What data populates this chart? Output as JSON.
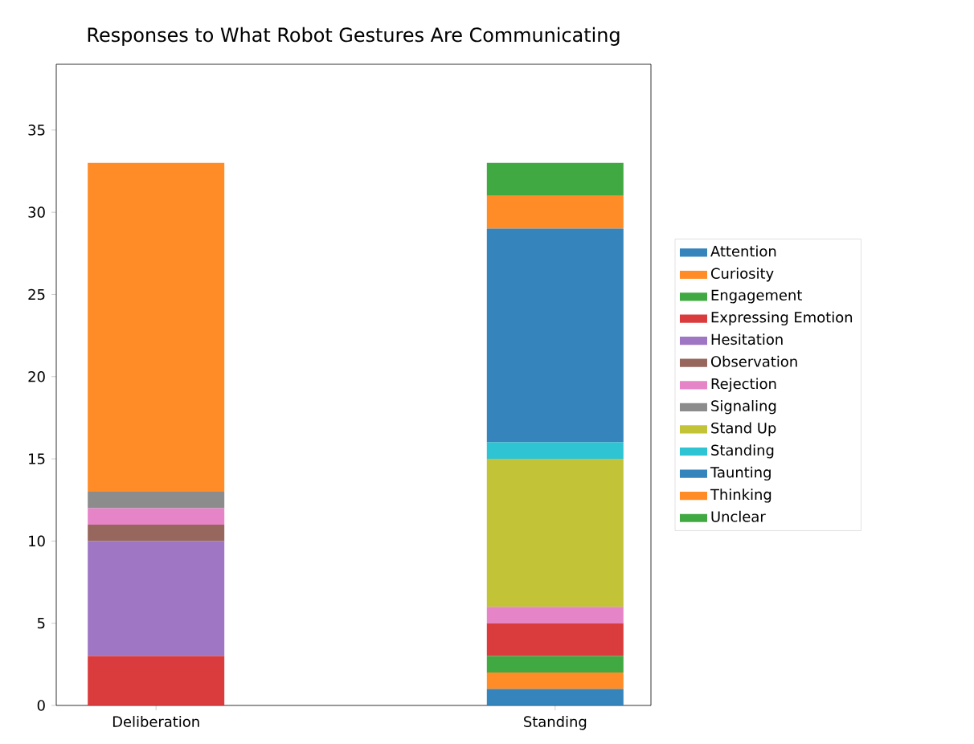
{
  "chart_data": {
    "type": "bar",
    "stacked": true,
    "title": "Responses to What Robot Gestures Are Communicating",
    "categories": [
      "Deliberation",
      "Standing"
    ],
    "series": [
      {
        "name": "Attention",
        "color": "#1f77b4",
        "values": [
          0,
          1
        ]
      },
      {
        "name": "Curiosity",
        "color": "#ff7f0e",
        "values": [
          0,
          1
        ]
      },
      {
        "name": "Engagement",
        "color": "#2ca02c",
        "values": [
          0,
          1
        ]
      },
      {
        "name": "Expressing Emotion",
        "color": "#d62728",
        "values": [
          3,
          2
        ]
      },
      {
        "name": "Hesitation",
        "color": "#9467bd",
        "values": [
          7,
          0
        ]
      },
      {
        "name": "Observation",
        "color": "#8c564b",
        "values": [
          1,
          0
        ]
      },
      {
        "name": "Rejection",
        "color": "#e377c2",
        "values": [
          1,
          1
        ]
      },
      {
        "name": "Signaling",
        "color": "#7f7f7f",
        "values": [
          1,
          0
        ]
      },
      {
        "name": "Stand Up",
        "color": "#bcbd22",
        "values": [
          0,
          9
        ]
      },
      {
        "name": "Standing",
        "color": "#17becf",
        "values": [
          0,
          1
        ]
      },
      {
        "name": "Taunting",
        "color": "#1f77b4",
        "values": [
          0,
          13
        ]
      },
      {
        "name": "Thinking",
        "color": "#ff7f0e",
        "values": [
          20,
          2
        ]
      },
      {
        "name": "Unclear",
        "color": "#2ca02c",
        "values": [
          0,
          2
        ]
      }
    ],
    "ylim": [
      0,
      39
    ],
    "yticks": [
      0,
      5,
      10,
      15,
      20,
      25,
      30,
      35
    ],
    "grid": false,
    "legend": "right"
  }
}
